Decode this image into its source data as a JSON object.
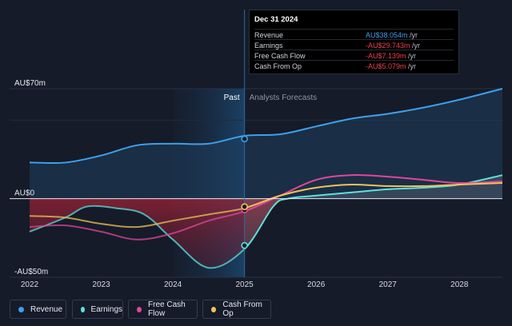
{
  "tooltip": {
    "title": "Dec 31 2024",
    "rows": [
      {
        "label": "Revenue",
        "value": "AU$38.054m",
        "unit": " /yr",
        "color": "#3ea0ec"
      },
      {
        "label": "Earnings",
        "value": "-AU$29.743m",
        "unit": " /yr",
        "color": "#f0414c"
      },
      {
        "label": "Free Cash Flow",
        "value": "-AU$7.139m",
        "unit": " /yr",
        "color": "#f0414c"
      },
      {
        "label": "Cash From Op",
        "value": "-AU$5.079m",
        "unit": " /yr",
        "color": "#f0414c"
      }
    ]
  },
  "period": {
    "past": "Past",
    "forecast": "Analysts Forecasts"
  },
  "legend": [
    {
      "label": "Revenue",
      "color": "#3ea0ec"
    },
    {
      "label": "Earnings",
      "color": "#5ee1d9"
    },
    {
      "label": "Free Cash Flow",
      "color": "#e0479a"
    },
    {
      "label": "Cash From Op",
      "color": "#f1c15a"
    }
  ],
  "chart_data": {
    "type": "line",
    "ylim": [
      -50,
      70
    ],
    "xlim": [
      2022,
      2028.6
    ],
    "y_tick_labels": [
      {
        "value": 70,
        "label": "AU$70m"
      },
      {
        "value": 0,
        "label": "AU$0"
      },
      {
        "value": -50,
        "label": "-AU$50m"
      }
    ],
    "x_ticks": [
      2022,
      2023,
      2024,
      2025,
      2026,
      2027,
      2028
    ],
    "x_tick_labels": [
      "2022",
      "2023",
      "2024",
      "2025",
      "2026",
      "2027",
      "2028"
    ],
    "past_end": 2025,
    "highlight_start": 2024,
    "series": [
      {
        "name": "Revenue",
        "color": "#3ea0ec",
        "points": [
          [
            2022,
            23
          ],
          [
            2022.5,
            23
          ],
          [
            2023,
            27.5
          ],
          [
            2023.5,
            34
          ],
          [
            2024,
            35
          ],
          [
            2024.5,
            35
          ],
          [
            2025,
            40
          ],
          [
            2025.5,
            41
          ],
          [
            2026,
            46
          ],
          [
            2026.5,
            51
          ],
          [
            2027,
            54
          ],
          [
            2027.5,
            58
          ],
          [
            2028,
            63
          ],
          [
            2028.6,
            70
          ]
        ]
      },
      {
        "name": "Earnings",
        "color": "#5ee1d9",
        "points": [
          [
            2022,
            -21
          ],
          [
            2022.5,
            -12
          ],
          [
            2022.8,
            -5
          ],
          [
            2023.2,
            -6
          ],
          [
            2023.6,
            -10
          ],
          [
            2024,
            -26
          ],
          [
            2024.5,
            -44
          ],
          [
            2025,
            -32
          ],
          [
            2025.4,
            -5
          ],
          [
            2025.6,
            0
          ],
          [
            2026,
            2
          ],
          [
            2026.5,
            4
          ],
          [
            2027,
            6
          ],
          [
            2027.5,
            7
          ],
          [
            2028,
            9
          ],
          [
            2028.6,
            15
          ]
        ]
      },
      {
        "name": "Free Cash Flow",
        "color": "#e0479a",
        "points": [
          [
            2022,
            -18
          ],
          [
            2022.5,
            -17
          ],
          [
            2023,
            -21
          ],
          [
            2023.5,
            -26
          ],
          [
            2024,
            -22
          ],
          [
            2024.5,
            -14
          ],
          [
            2025,
            -8
          ],
          [
            2025.5,
            2
          ],
          [
            2026,
            12
          ],
          [
            2026.5,
            15
          ],
          [
            2027,
            14
          ],
          [
            2027.5,
            12
          ],
          [
            2028,
            10
          ],
          [
            2028.6,
            11
          ]
        ]
      },
      {
        "name": "Cash From Op",
        "color": "#f1c15a",
        "points": [
          [
            2022,
            -11
          ],
          [
            2022.5,
            -12
          ],
          [
            2023,
            -16
          ],
          [
            2023.5,
            -18
          ],
          [
            2024,
            -14
          ],
          [
            2024.5,
            -10
          ],
          [
            2025,
            -6
          ],
          [
            2025.5,
            2
          ],
          [
            2026,
            7
          ],
          [
            2026.5,
            9
          ],
          [
            2027,
            8
          ],
          [
            2027.5,
            8
          ],
          [
            2028,
            9
          ],
          [
            2028.6,
            10
          ]
        ]
      }
    ],
    "markers": [
      {
        "series": "Revenue",
        "x": 2025,
        "y": 38.054
      },
      {
        "series": "Earnings",
        "x": 2025,
        "y": -29.743
      },
      {
        "series": "Free Cash Flow",
        "x": 2025,
        "y": -7.139
      },
      {
        "series": "Cash From Op",
        "x": 2025,
        "y": -5.079
      }
    ]
  }
}
